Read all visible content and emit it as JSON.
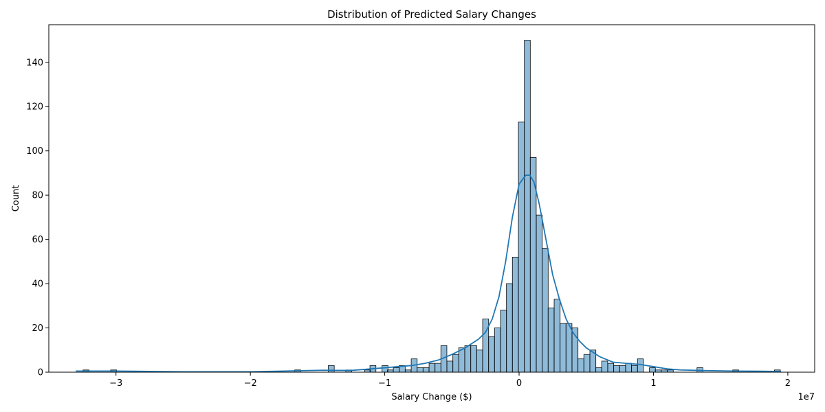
{
  "chart_data": {
    "type": "bar",
    "title": "Distribution of Predicted Salary Changes",
    "xlabel": "Salary Change ($)",
    "ylabel": "Count",
    "x_offset_label": "1e7",
    "x_scale": 10000000,
    "xlim": [
      -3.5,
      2.2
    ],
    "ylim": [
      0,
      157
    ],
    "bin_width": 0.0443,
    "x_ticks": [
      -3,
      -2,
      -1,
      0,
      1,
      2
    ],
    "x_tick_labels": [
      "−3",
      "−2",
      "−1",
      "0",
      "1",
      "2"
    ],
    "y_ticks": [
      0,
      20,
      40,
      60,
      80,
      100,
      120,
      140
    ],
    "y_tick_labels": [
      "0",
      "20",
      "40",
      "60",
      "80",
      "100",
      "120",
      "140"
    ],
    "grid": false,
    "legend": "none",
    "bar_color": "#1f77b4",
    "bar_opacity": 0.5,
    "kde_color": "#1f77b4",
    "bins": [
      {
        "x": -3.245,
        "count": 1
      },
      {
        "x": -3.04,
        "count": 1
      },
      {
        "x": -1.67,
        "count": 1
      },
      {
        "x": -1.42,
        "count": 3
      },
      {
        "x": -1.29,
        "count": 1
      },
      {
        "x": -1.15,
        "count": 1
      },
      {
        "x": -1.11,
        "count": 3
      },
      {
        "x": -1.02,
        "count": 3
      },
      {
        "x": -0.98,
        "count": 1
      },
      {
        "x": -0.936,
        "count": 2
      },
      {
        "x": -0.892,
        "count": 3
      },
      {
        "x": -0.848,
        "count": 1
      },
      {
        "x": -0.803,
        "count": 6
      },
      {
        "x": -0.759,
        "count": 2
      },
      {
        "x": -0.715,
        "count": 2
      },
      {
        "x": -0.67,
        "count": 4
      },
      {
        "x": -0.626,
        "count": 4
      },
      {
        "x": -0.582,
        "count": 12
      },
      {
        "x": -0.537,
        "count": 5
      },
      {
        "x": -0.493,
        "count": 8
      },
      {
        "x": -0.449,
        "count": 11
      },
      {
        "x": -0.404,
        "count": 12
      },
      {
        "x": -0.36,
        "count": 12
      },
      {
        "x": -0.316,
        "count": 10
      },
      {
        "x": -0.271,
        "count": 24
      },
      {
        "x": -0.227,
        "count": 16
      },
      {
        "x": -0.183,
        "count": 20
      },
      {
        "x": -0.138,
        "count": 28
      },
      {
        "x": -0.094,
        "count": 40
      },
      {
        "x": -0.05,
        "count": 52
      },
      {
        "x": -0.005,
        "count": 113
      },
      {
        "x": 0.039,
        "count": 150
      },
      {
        "x": 0.083,
        "count": 97
      },
      {
        "x": 0.128,
        "count": 71
      },
      {
        "x": 0.172,
        "count": 56
      },
      {
        "x": 0.216,
        "count": 29
      },
      {
        "x": 0.261,
        "count": 33
      },
      {
        "x": 0.305,
        "count": 22
      },
      {
        "x": 0.349,
        "count": 22
      },
      {
        "x": 0.394,
        "count": 20
      },
      {
        "x": 0.438,
        "count": 6
      },
      {
        "x": 0.482,
        "count": 8
      },
      {
        "x": 0.527,
        "count": 10
      },
      {
        "x": 0.571,
        "count": 2
      },
      {
        "x": 0.615,
        "count": 5
      },
      {
        "x": 0.66,
        "count": 4
      },
      {
        "x": 0.704,
        "count": 3
      },
      {
        "x": 0.748,
        "count": 3
      },
      {
        "x": 0.793,
        "count": 4
      },
      {
        "x": 0.837,
        "count": 3
      },
      {
        "x": 0.881,
        "count": 6
      },
      {
        "x": 0.97,
        "count": 2
      },
      {
        "x": 1.014,
        "count": 1
      },
      {
        "x": 1.058,
        "count": 1
      },
      {
        "x": 1.103,
        "count": 1
      },
      {
        "x": 1.324,
        "count": 2
      },
      {
        "x": 1.59,
        "count": 1
      },
      {
        "x": 1.9,
        "count": 1
      }
    ],
    "kde": {
      "x": [
        -3.3,
        -3.0,
        -2.5,
        -2.0,
        -1.8,
        -1.6,
        -1.45,
        -1.35,
        -1.25,
        -1.1,
        -1.0,
        -0.9,
        -0.8,
        -0.7,
        -0.6,
        -0.5,
        -0.4,
        -0.3,
        -0.25,
        -0.2,
        -0.15,
        -0.1,
        -0.05,
        0.0,
        0.05,
        0.08,
        0.11,
        0.15,
        0.2,
        0.25,
        0.3,
        0.35,
        0.4,
        0.45,
        0.5,
        0.55,
        0.6,
        0.7,
        0.8,
        0.9,
        1.0,
        1.1,
        1.2,
        1.4,
        1.6,
        1.8,
        1.95
      ],
      "y": [
        0.5,
        0.5,
        0.2,
        0.2,
        0.4,
        0.7,
        0.9,
        0.8,
        0.8,
        1.5,
        2,
        2.5,
        3,
        4,
        5.5,
        8,
        11,
        15,
        18,
        24,
        34,
        50,
        70,
        85,
        89,
        89,
        86,
        76,
        60,
        44,
        33,
        24,
        18,
        14,
        11,
        9,
        7,
        4.5,
        4,
        3.5,
        2.5,
        1.5,
        1,
        0.7,
        0.5,
        0.4,
        0.3
      ]
    }
  }
}
